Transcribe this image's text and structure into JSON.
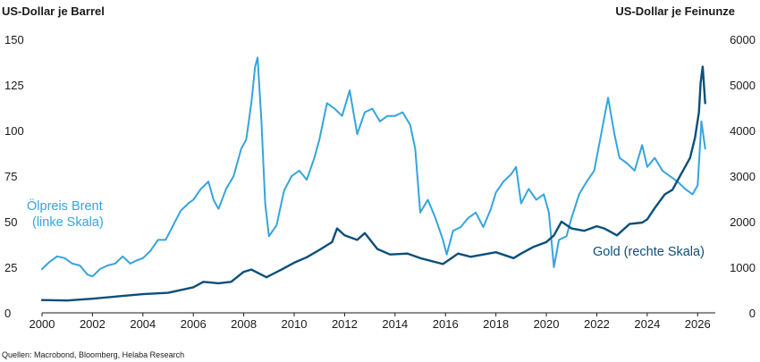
{
  "source": "Quellen: Macrobond, Bloomberg, Helaba Research",
  "chart_data": {
    "type": "line",
    "title": "",
    "left_axis_title": "US-Dollar je Barrel",
    "right_axis_title": "US-Dollar je Feinunze",
    "xlim": [
      2000,
      2026.7
    ],
    "x_ticks": [
      2000,
      2002,
      2004,
      2006,
      2008,
      2010,
      2012,
      2014,
      2016,
      2018,
      2020,
      2022,
      2024,
      2026
    ],
    "x_tick_labels": [
      "2000",
      "2002",
      "2004",
      "2006",
      "2008",
      "2010",
      "2012",
      "2014",
      "2016",
      "2018",
      "2020",
      "2022",
      "2024",
      "2026"
    ],
    "ylim_left": [
      0,
      150
    ],
    "y_ticks_left": [
      0,
      25,
      50,
      75,
      100,
      125,
      150
    ],
    "y_tick_labels_left": [
      "0",
      "25",
      "50",
      "75",
      "100",
      "125",
      "150"
    ],
    "ylim_right": [
      0,
      6000
    ],
    "y_ticks_right": [
      0,
      1000,
      2000,
      3000,
      4000,
      5000,
      6000
    ],
    "y_tick_labels_right": [
      "0",
      "1000",
      "2000",
      "3000",
      "4000",
      "5000",
      "6000"
    ],
    "grid": false,
    "legend": "inline labels",
    "series": [
      {
        "name": "Ölpreis Brent",
        "label_lines": [
          "Ölpreis Brent",
          "(linke Skala)"
        ],
        "axis": "left",
        "color": "#35a4dd",
        "x": [
          2000.0,
          2000.3,
          2000.6,
          2000.9,
          2001.2,
          2001.5,
          2001.8,
          2002.0,
          2002.3,
          2002.6,
          2002.9,
          2003.2,
          2003.5,
          2003.8,
          2004.0,
          2004.3,
          2004.6,
          2004.9,
          2005.2,
          2005.5,
          2005.8,
          2006.0,
          2006.3,
          2006.6,
          2006.8,
          2007.0,
          2007.3,
          2007.6,
          2007.9,
          2008.1,
          2008.3,
          2008.45,
          2008.55,
          2008.7,
          2008.85,
          2009.0,
          2009.3,
          2009.6,
          2009.9,
          2010.2,
          2010.5,
          2010.8,
          2011.0,
          2011.3,
          2011.6,
          2011.9,
          2012.2,
          2012.5,
          2012.8,
          2013.1,
          2013.4,
          2013.7,
          2014.0,
          2014.3,
          2014.6,
          2014.8,
          2015.0,
          2015.3,
          2015.6,
          2015.9,
          2016.05,
          2016.3,
          2016.6,
          2016.9,
          2017.2,
          2017.5,
          2017.8,
          2018.0,
          2018.3,
          2018.6,
          2018.8,
          2019.0,
          2019.3,
          2019.6,
          2019.9,
          2020.1,
          2020.3,
          2020.5,
          2020.8,
          2021.0,
          2021.3,
          2021.6,
          2021.9,
          2022.2,
          2022.45,
          2022.7,
          2022.9,
          2023.2,
          2023.5,
          2023.8,
          2024.0,
          2024.3,
          2024.6,
          2024.9,
          2025.2,
          2025.5,
          2025.8,
          2026.0,
          2026.15,
          2026.3
        ],
        "y": [
          24,
          28,
          31,
          30,
          27,
          26,
          21,
          20,
          24,
          26,
          27,
          31,
          27,
          29,
          30,
          34,
          40,
          40,
          48,
          56,
          60,
          62,
          68,
          72,
          62,
          57,
          68,
          75,
          90,
          95,
          115,
          135,
          140,
          105,
          60,
          42,
          48,
          67,
          75,
          78,
          73,
          85,
          95,
          115,
          112,
          108,
          122,
          98,
          110,
          112,
          105,
          108,
          108,
          110,
          103,
          90,
          55,
          62,
          52,
          40,
          32,
          45,
          47,
          52,
          55,
          47,
          57,
          66,
          72,
          76,
          80,
          60,
          68,
          62,
          65,
          55,
          25,
          40,
          42,
          52,
          65,
          72,
          78,
          100,
          118,
          98,
          85,
          82,
          78,
          92,
          80,
          85,
          78,
          75,
          72,
          68,
          65,
          70,
          105,
          90
        ]
      },
      {
        "name": "Gold",
        "label_lines": [
          "Gold (rechte Skala)"
        ],
        "axis": "right",
        "color": "#0b4f7a",
        "x": [
          2000.0,
          2001.0,
          2002.0,
          2003.0,
          2004.0,
          2005.0,
          2006.0,
          2006.4,
          2007.0,
          2007.5,
          2008.0,
          2008.3,
          2008.9,
          2009.5,
          2010.0,
          2010.5,
          2011.0,
          2011.5,
          2011.7,
          2012.0,
          2012.5,
          2012.8,
          2013.3,
          2013.8,
          2014.5,
          2015.0,
          2015.9,
          2016.5,
          2017.0,
          2018.0,
          2018.7,
          2019.0,
          2019.5,
          2020.0,
          2020.3,
          2020.6,
          2021.0,
          2021.5,
          2022.0,
          2022.3,
          2022.8,
          2023.3,
          2023.8,
          2024.0,
          2024.3,
          2024.7,
          2025.0,
          2025.3,
          2025.7,
          2025.9,
          2026.05,
          2026.12,
          2026.2,
          2026.3
        ],
        "y": [
          280,
          270,
          310,
          360,
          410,
          440,
          560,
          680,
          650,
          680,
          900,
          950,
          780,
          950,
          1100,
          1220,
          1380,
          1550,
          1850,
          1700,
          1600,
          1750,
          1400,
          1280,
          1300,
          1200,
          1070,
          1300,
          1230,
          1330,
          1200,
          1300,
          1450,
          1550,
          1700,
          2000,
          1850,
          1800,
          1900,
          1850,
          1700,
          1950,
          1980,
          2050,
          2300,
          2600,
          2700,
          3000,
          3400,
          3850,
          4400,
          5050,
          5400,
          4600
        ]
      }
    ]
  }
}
